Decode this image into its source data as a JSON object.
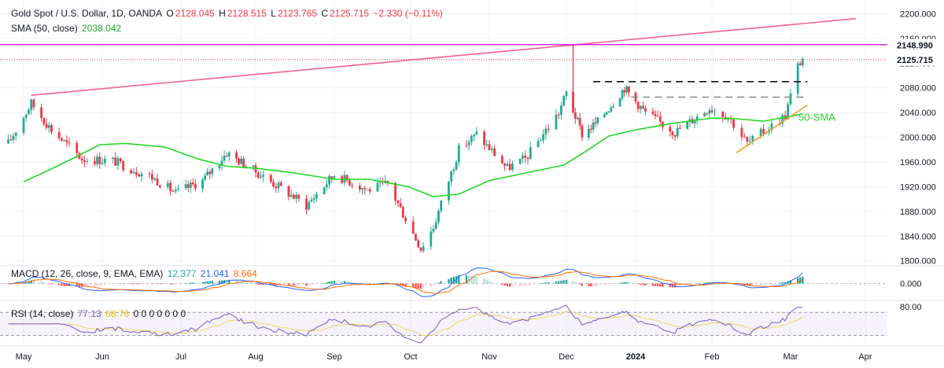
{
  "header": {
    "instrument": "Gold Spot / U.S. Dollar, 1D, OANDA",
    "o_label": "O",
    "o_value": "2128.045",
    "h_label": "H",
    "h_value": "2128.515",
    "l_label": "L",
    "l_value": "2123.765",
    "c_label": "C",
    "c_value": "2125.715",
    "change": "−2.330 (−0.11%)",
    "sma_label": "SMA (50, close)",
    "sma_value": "2038.042",
    "macd_label": "MACD (12, 26, close, 9, EMA, EMA)",
    "macd_hist": "12.377",
    "macd_line": "21.041",
    "macd_signal": "8.664",
    "rsi_label": "RSI (14, close)",
    "rsi_value": "77.13",
    "rsi_ma": "68.76",
    "rsi_extra": "0 0 0 0 0 0 0"
  },
  "colors": {
    "up": "#22ab94",
    "down": "#f23645",
    "sma": "#22d822",
    "trend": "#f06292",
    "resistance": "#d500f9",
    "support": "#f0a030",
    "macd_line": "#2962ff",
    "macd_signal": "#ff6d00",
    "rsi": "#7e57c2",
    "rsi_ma": "#f0d860"
  },
  "chart_data": [
    {
      "type": "candlestick",
      "title": "Gold Spot / U.S. Dollar, 1D, OANDA",
      "x_ticks": [
        "May",
        "Jun",
        "Jul",
        "Aug",
        "Sep",
        "Oct",
        "Nov",
        "Dec",
        "2024",
        "Feb",
        "Mar",
        "Apr"
      ],
      "y_ticks": [
        1800,
        1840,
        1880,
        1920,
        1960,
        2000,
        2040,
        2080,
        2120,
        2160,
        2200
      ],
      "ylim": [
        1792,
        2212
      ],
      "price_labels": [
        {
          "value": 2148.99,
          "text": "2148.990"
        },
        {
          "value": 2125.715,
          "text": "2125.715"
        }
      ],
      "sma_series": {
        "name": "SMA (50, close)",
        "points": [
          [
            "2023-05-01",
            1928
          ],
          [
            "2023-05-10",
            1945
          ],
          [
            "2023-05-20",
            1965
          ],
          [
            "2023-05-31",
            1988
          ],
          [
            "2023-06-10",
            1990
          ],
          [
            "2023-06-25",
            1984
          ],
          [
            "2023-07-08",
            1965
          ],
          [
            "2023-07-20",
            1953
          ],
          [
            "2023-08-01",
            1950
          ],
          [
            "2023-08-15",
            1943
          ],
          [
            "2023-09-01",
            1932
          ],
          [
            "2023-09-15",
            1932
          ],
          [
            "2023-09-30",
            1920
          ],
          [
            "2023-10-10",
            1904
          ],
          [
            "2023-10-20",
            1908
          ],
          [
            "2023-11-01",
            1930
          ],
          [
            "2023-11-15",
            1942
          ],
          [
            "2023-11-30",
            1955
          ],
          [
            "2023-12-10",
            1978
          ],
          [
            "2023-12-20",
            2002
          ],
          [
            "2024-01-01",
            2012
          ],
          [
            "2024-01-15",
            2022
          ],
          [
            "2024-02-01",
            2031
          ],
          [
            "2024-02-10",
            2030
          ],
          [
            "2024-02-20",
            2026
          ],
          [
            "2024-03-01",
            2034
          ],
          [
            "2024-03-06",
            2038
          ]
        ]
      },
      "trendline": {
        "points": [
          [
            "2023-05-04",
            2068
          ],
          [
            "2024-03-28",
            2192
          ]
        ]
      },
      "resistance": {
        "value": 2150
      },
      "dashed_black": {
        "start": "2023-12-13",
        "end": "2024-03-08",
        "value": 2090
      },
      "dashed_gray": {
        "start": "2023-12-30",
        "end": "2024-03-08",
        "value": 2065
      },
      "support_line": {
        "points": [
          [
            "2024-02-10",
            1975
          ],
          [
            "2024-03-08",
            2052
          ]
        ]
      },
      "spike": {
        "date": "2023-12-04",
        "high": 2150,
        "low": 2040
      },
      "annotation": "50-SMA"
    },
    {
      "type": "macd",
      "y_ticks": [
        0.0
      ],
      "y_tick_labels": [
        "0.000"
      ],
      "ylim": [
        -30,
        35
      ]
    },
    {
      "type": "rsi",
      "y_ticks": [
        80.0
      ],
      "y_tick_labels": [
        "80.00"
      ],
      "ylim": [
        20,
        88
      ]
    }
  ]
}
